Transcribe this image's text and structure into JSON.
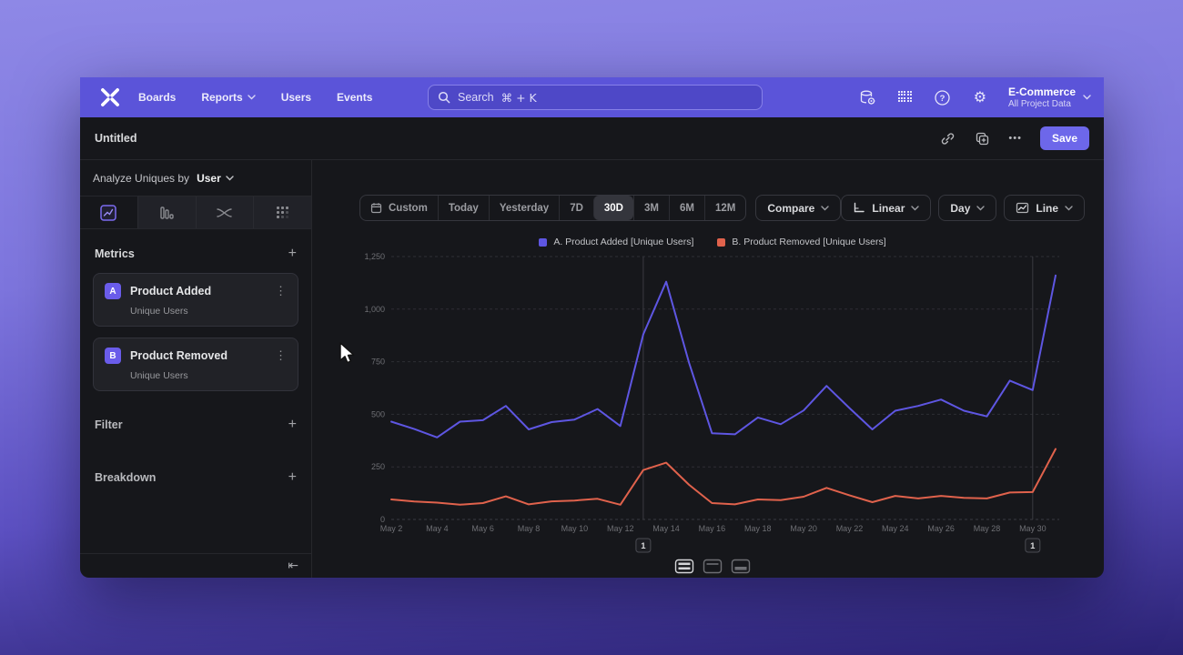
{
  "nav": {
    "items": [
      "Boards",
      "Reports",
      "Users",
      "Events"
    ],
    "search": {
      "label": "Search",
      "shortcut": "⌘ + K"
    },
    "project": {
      "name": "E-Commerce",
      "subtitle": "All Project Data"
    }
  },
  "titlebar": {
    "title": "Untitled",
    "save_label": "Save"
  },
  "icons": {
    "plus": "+",
    "kebab": "⋮",
    "ellipsis": "•••",
    "collapse": "⇤",
    "help": "?",
    "gear": "⚙"
  },
  "sidebar": {
    "analyze_prefix": "Analyze Uniques by",
    "analyze_value": "User",
    "metrics_label": "Metrics",
    "filter_label": "Filter",
    "breakdown_label": "Breakdown",
    "metrics": [
      {
        "badge": "A",
        "name": "Product Added",
        "sub": "Unique Users"
      },
      {
        "badge": "B",
        "name": "Product Removed",
        "sub": "Unique Users"
      }
    ]
  },
  "toolbar": {
    "ranges": [
      "Custom",
      "Today",
      "Yesterday",
      "7D",
      "30D",
      "3M",
      "6M",
      "12M"
    ],
    "selected_range": "30D",
    "compare_label": "Compare",
    "scale_label": "Linear",
    "interval_label": "Day",
    "charttype_label": "Line"
  },
  "colors": {
    "nav": "#5B54D9",
    "accent": "#6D67EA",
    "series_a": "#5E56E2",
    "series_b": "#E0624C",
    "grid": "#2E2F35",
    "axis_text": "#6E6F74",
    "annotation_line": "#3A3B41"
  },
  "chart_data": {
    "type": "line",
    "x": [
      "May 2",
      "May 3",
      "May 4",
      "May 5",
      "May 6",
      "May 7",
      "May 8",
      "May 9",
      "May 10",
      "May 11",
      "May 12",
      "May 13",
      "May 14",
      "May 15",
      "May 16",
      "May 17",
      "May 18",
      "May 19",
      "May 20",
      "May 21",
      "May 22",
      "May 23",
      "May 24",
      "May 25",
      "May 26",
      "May 27",
      "May 28",
      "May 29",
      "May 30",
      "May 31"
    ],
    "tick_every": 2,
    "ylim": [
      0,
      1250
    ],
    "yticks": [
      0,
      250,
      500,
      750,
      1000,
      1250
    ],
    "grid": "dashed-horizontal",
    "legend_position": "top-center",
    "series": [
      {
        "name": "A. Product Added [Unique Users]",
        "color": "#5E56E2",
        "values": [
          465,
          430,
          390,
          465,
          472,
          540,
          428,
          463,
          475,
          525,
          444,
          880,
          1130,
          745,
          410,
          405,
          485,
          453,
          518,
          635,
          530,
          428,
          517,
          540,
          570,
          517,
          490,
          660,
          615,
          1160
        ]
      },
      {
        "name": "B. Product Removed [Unique Users]",
        "color": "#E0624C",
        "values": [
          95,
          85,
          80,
          70,
          78,
          110,
          72,
          86,
          90,
          98,
          70,
          235,
          270,
          165,
          78,
          72,
          95,
          92,
          108,
          150,
          115,
          82,
          112,
          100,
          112,
          103,
          100,
          128,
          130,
          335
        ]
      }
    ],
    "annotations": [
      {
        "label": "1",
        "x": "May 13"
      },
      {
        "label": "1",
        "x": "May 30"
      }
    ]
  }
}
